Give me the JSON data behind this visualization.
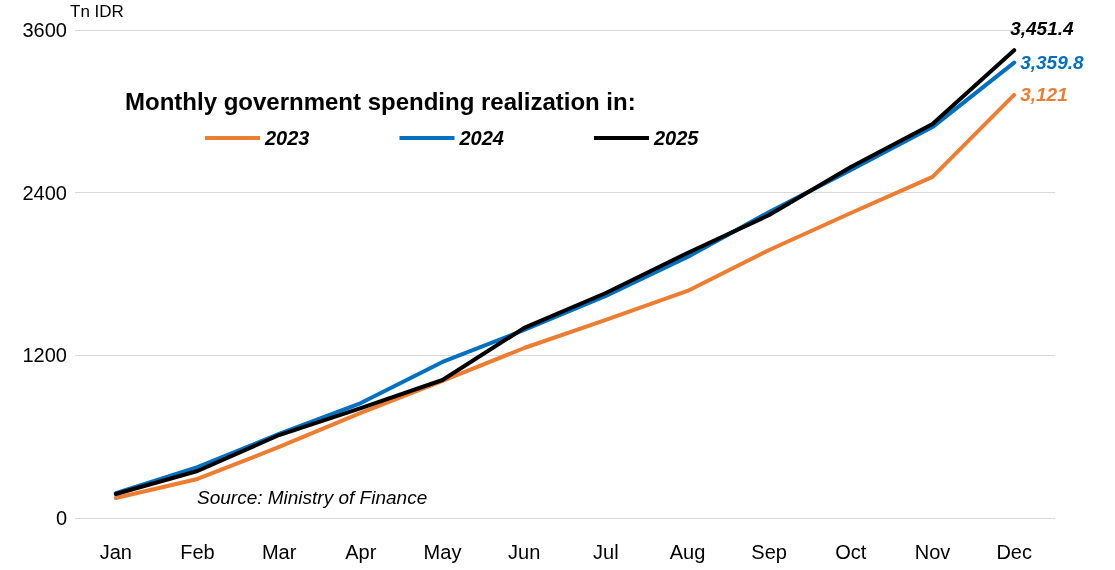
{
  "chart_data": {
    "type": "line",
    "title": "Monthly government spending realization in:",
    "ylabel": "Tn IDR",
    "categories": [
      "Jan",
      "Feb",
      "Mar",
      "Apr",
      "May",
      "Jun",
      "Jul",
      "Aug",
      "Sep",
      "Oct",
      "Nov",
      "Dec"
    ],
    "series": [
      {
        "name": "2023",
        "color": "#ed7d31",
        "values": [
          148,
          288,
          524,
          775,
          1011,
          1254,
          1461,
          1675,
          1977,
          2250,
          2516,
          3121
        ],
        "value_labels": [
          null,
          null,
          null,
          null,
          null,
          null,
          null,
          null,
          null,
          null,
          null,
          "3,121"
        ]
      },
      {
        "name": "2024",
        "color": "#0070c0",
        "values": [
          184,
          376,
          620,
          848,
          1151,
          1387,
          1638,
          1925,
          2257,
          2567,
          2884,
          3359.8
        ],
        "value_labels": [
          null,
          null,
          null,
          null,
          null,
          null,
          null,
          null,
          null,
          null,
          null,
          "3,359.8"
        ]
      },
      {
        "name": "2025",
        "color": "#000000",
        "values": [
          177,
          347,
          612,
          811,
          1018,
          1402,
          1660,
          1955,
          2235,
          2589,
          2906,
          3451.4
        ],
        "value_labels": [
          null,
          null,
          null,
          null,
          null,
          null,
          null,
          null,
          null,
          null,
          null,
          "3,451.4"
        ]
      }
    ],
    "ylim": [
      0,
      3600
    ],
    "yticks": [
      0,
      1200,
      2400,
      3600
    ],
    "grid": "y",
    "legend": "top",
    "marker": "none",
    "line_style": "solid",
    "annotations": [
      "Source: Ministry of Finance"
    ]
  }
}
